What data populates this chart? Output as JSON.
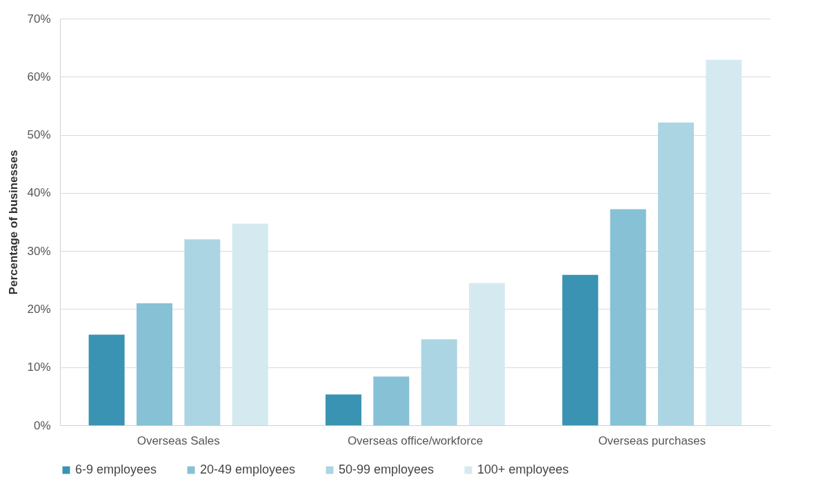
{
  "chart_data": {
    "type": "bar",
    "ylabel": "Percentage of businesses",
    "categories": [
      "Overseas Sales",
      "Overseas office/workforce",
      "Overseas purchases"
    ],
    "series": [
      {
        "name": "6-9 employees",
        "color": "#3a93b3",
        "values": [
          15.6,
          5.3,
          25.9
        ]
      },
      {
        "name": "20-49 employees",
        "color": "#86c1d6",
        "values": [
          21.0,
          8.4,
          37.2
        ]
      },
      {
        "name": "50-99 employees",
        "color": "#acd5e3",
        "values": [
          32.0,
          14.8,
          52.1
        ]
      },
      {
        "name": "100+ employees",
        "color": "#d4eaf0",
        "values": [
          34.7,
          24.5,
          62.9
        ]
      }
    ],
    "ylim": [
      0,
      70
    ],
    "yticks": [
      {
        "value": 0,
        "label": "0%"
      },
      {
        "value": 10,
        "label": "10%"
      },
      {
        "value": 20,
        "label": "20%"
      },
      {
        "value": 30,
        "label": "30%"
      },
      {
        "value": 40,
        "label": "40%"
      },
      {
        "value": 50,
        "label": "50%"
      },
      {
        "value": 60,
        "label": "60%"
      },
      {
        "value": 70,
        "label": "70%"
      }
    ],
    "grid": "y",
    "legend": "bottom"
  }
}
